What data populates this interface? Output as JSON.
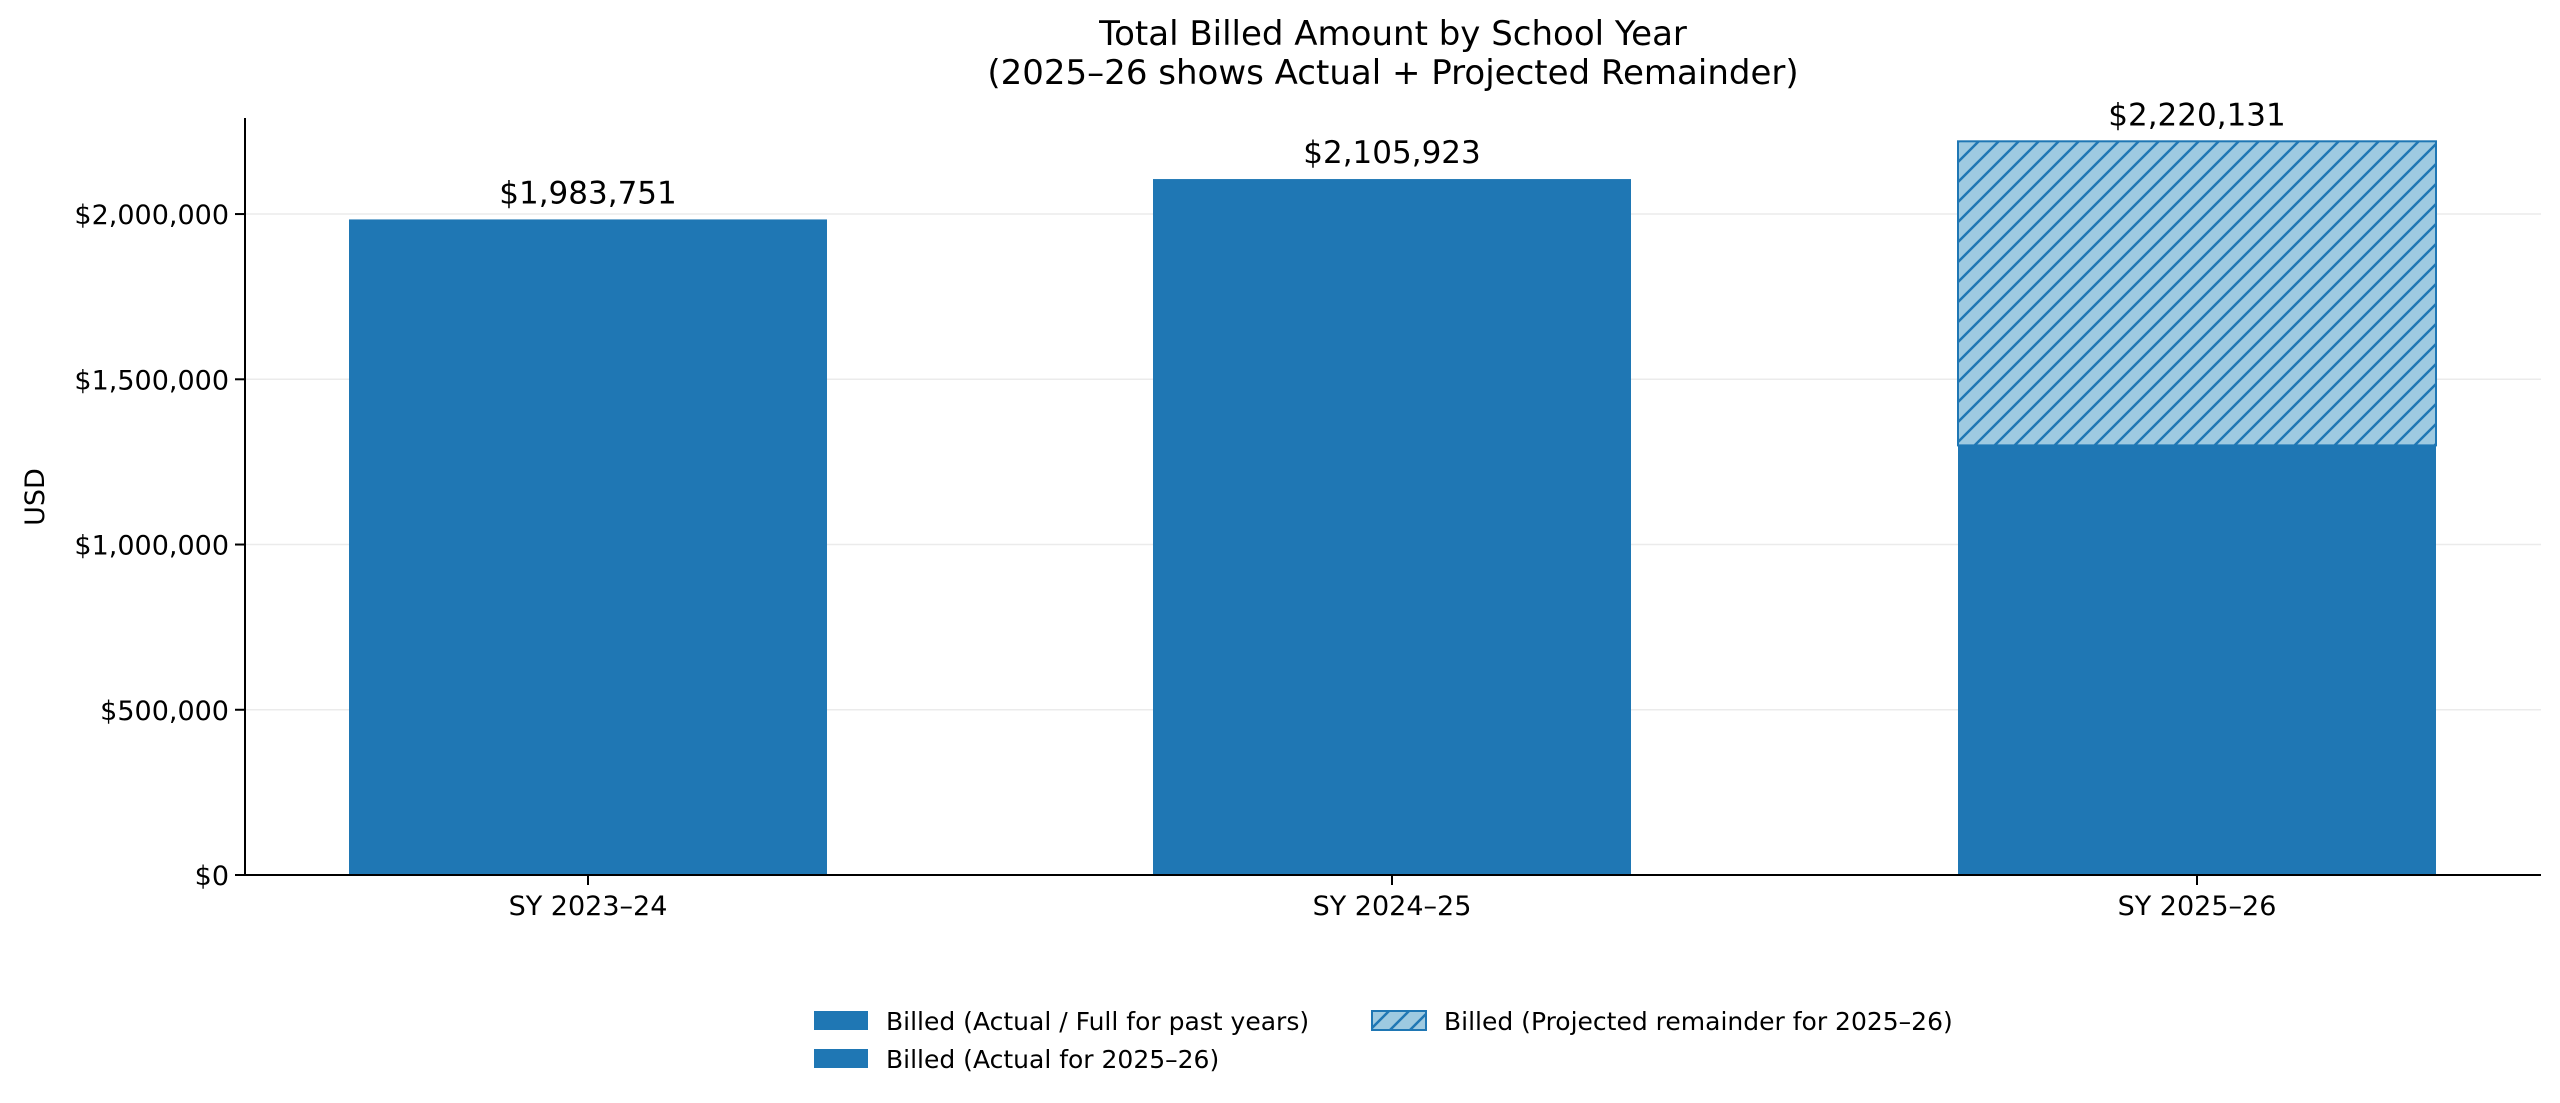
{
  "chart_data": {
    "type": "bar",
    "title": "Total Billed Amount by School Year",
    "subtitle": "(2025–26 shows Actual + Projected Remainder)",
    "xlabel": "",
    "ylabel": "USD",
    "categories": [
      "SY 2023–24",
      "SY 2024–25",
      "SY 2025–26"
    ],
    "series": [
      {
        "name": "Billed (Actual / Full for past years)",
        "values": [
          1983751,
          2105923,
          0
        ],
        "color": "#1f77b4",
        "pattern": "solid"
      },
      {
        "name": "Billed (Actual for 2025–26)",
        "values": [
          0,
          0,
          1300000
        ],
        "color": "#1f77b4",
        "pattern": "solid"
      },
      {
        "name": "Billed (Projected remainder for 2025–26)",
        "values": [
          0,
          0,
          920131
        ],
        "color": "#9ecae1",
        "edge_color": "#1f77b4",
        "pattern": "hatch"
      }
    ],
    "totals": [
      1983751,
      2105923,
      2220131
    ],
    "total_labels": [
      "$1,983,751",
      "$2,105,923",
      "$2,220,131"
    ],
    "ylim": [
      0,
      2330000
    ],
    "yticks": [
      0,
      500000,
      1000000,
      1500000,
      2000000
    ],
    "ytick_labels": [
      "$0",
      "$500,000",
      "$1,000,000",
      "$1,500,000",
      "$2,000,000"
    ],
    "grid": "horizontal",
    "stacked": true,
    "legend": {
      "placement": "bottom-center",
      "columns": 2
    }
  }
}
